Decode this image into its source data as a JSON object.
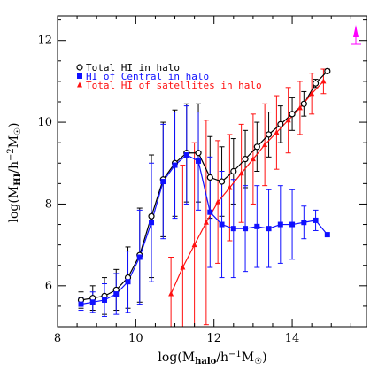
{
  "chart_data": {
    "type": "line",
    "xlabel": "log(M_halo/h⁻¹M☉)",
    "ylabel": "log(M_HI/h⁻²M☉)",
    "xlim": [
      8,
      15.9
    ],
    "ylim": [
      5,
      12.6
    ],
    "x_ticks": [
      8,
      10,
      12,
      14
    ],
    "y_ticks": [
      6,
      8,
      10,
      12
    ],
    "grid": false,
    "legend_position": "top-left",
    "series": [
      {
        "name": "Total HI in halo",
        "color": "#000000",
        "marker": "circle",
        "x": [
          8.6,
          8.9,
          9.2,
          9.5,
          9.8,
          10.1,
          10.4,
          10.7,
          11.0,
          11.3,
          11.6,
          11.9,
          12.2,
          12.5,
          12.8,
          13.1,
          13.4,
          13.7,
          14.0,
          14.3,
          14.6,
          14.9
        ],
        "y": [
          5.65,
          5.7,
          5.75,
          5.9,
          6.2,
          6.75,
          7.7,
          8.6,
          9.0,
          9.25,
          9.25,
          8.65,
          8.55,
          8.8,
          9.1,
          9.4,
          9.7,
          9.95,
          10.2,
          10.45,
          10.95,
          11.25
        ],
        "err": [
          0.2,
          0.3,
          0.45,
          0.5,
          0.75,
          1.15,
          1.5,
          1.4,
          1.3,
          1.2,
          1.2,
          1.0,
          0.85,
          0.8,
          0.7,
          0.6,
          0.55,
          0.45,
          0.4,
          0.3,
          0.1,
          0.05
        ]
      },
      {
        "name": "HI of Central in halo",
        "color": "#1010ff",
        "marker": "square",
        "x": [
          8.6,
          8.9,
          9.2,
          9.5,
          9.8,
          10.1,
          10.4,
          10.7,
          11.0,
          11.3,
          11.6,
          11.9,
          12.2,
          12.5,
          12.8,
          13.1,
          13.4,
          13.7,
          14.0,
          14.3,
          14.6,
          14.9
        ],
        "y": [
          5.55,
          5.6,
          5.65,
          5.8,
          6.1,
          6.7,
          7.55,
          8.55,
          8.95,
          9.2,
          9.05,
          7.8,
          7.5,
          7.4,
          7.4,
          7.45,
          7.4,
          7.5,
          7.5,
          7.55,
          7.6,
          7.25
        ],
        "err": [
          0.15,
          0.25,
          0.4,
          0.5,
          0.75,
          1.15,
          1.45,
          1.4,
          1.3,
          1.2,
          1.2,
          1.35,
          1.3,
          1.2,
          1.05,
          1.0,
          0.95,
          0.95,
          0.85,
          0.4,
          0.25,
          0.0
        ]
      },
      {
        "name": "Total HI of satellites in halo",
        "color": "#ff1010",
        "marker": "triangle",
        "x": [
          10.9,
          11.2,
          11.5,
          11.8,
          12.1,
          12.4,
          12.7,
          13.0,
          13.3,
          13.6,
          13.9,
          14.2,
          14.5,
          14.8
        ],
        "y": [
          5.8,
          6.45,
          7.0,
          7.55,
          8.05,
          8.4,
          8.75,
          9.1,
          9.45,
          9.75,
          10.05,
          10.35,
          10.7,
          11.0
        ],
        "err": [
          0.9,
          2.5,
          2.5,
          2.5,
          1.5,
          1.3,
          1.2,
          1.1,
          1.0,
          0.9,
          0.8,
          0.65,
          0.5,
          0.3
        ]
      }
    ]
  }
}
